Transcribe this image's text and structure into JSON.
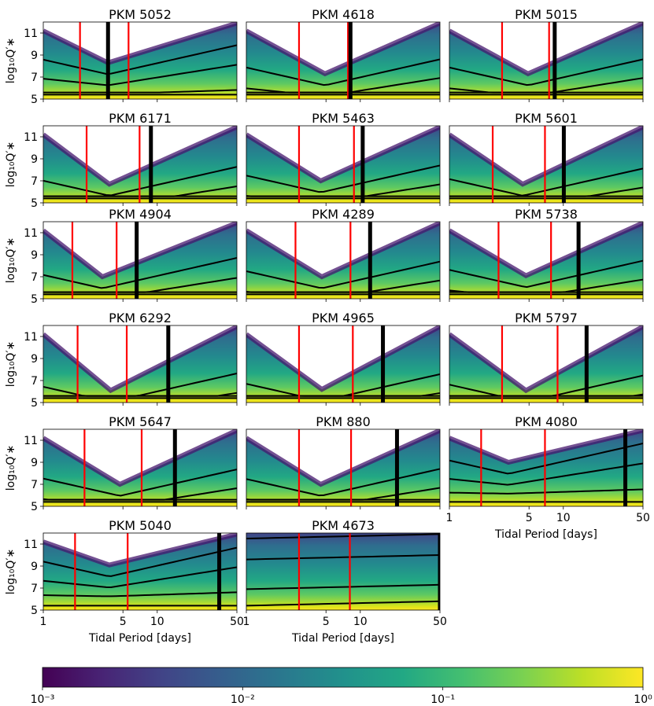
{
  "chart_data": {
    "type": "heatmap",
    "title": "",
    "xlabel": "Tidal Period [days]",
    "ylabel": "log₁₀Q′∗",
    "xscale": "log",
    "xlim": [
      1,
      50
    ],
    "ylim": [
      5,
      12
    ],
    "x_ticks": [
      1,
      5,
      10,
      50
    ],
    "x_tick_labels": [
      "1",
      "5",
      "10",
      "50"
    ],
    "y_ticks": [
      5,
      7,
      9,
      11
    ],
    "y_tick_labels": [
      "5",
      "7",
      "9",
      "11"
    ],
    "colorbar": {
      "scale": "log",
      "range": [
        0.001,
        1
      ],
      "colormap": "viridis",
      "ticks": [
        0.001,
        0.01,
        0.1,
        1
      ],
      "tick_labels": [
        "10⁻³",
        "10⁻²",
        "10⁻¹",
        "10⁰"
      ]
    },
    "panels": [
      {
        "name": "PKM 5052",
        "red_lines": [
          2.1,
          5.6
        ],
        "black_line": 3.7,
        "vertex": {
          "x": 3.7,
          "y": 8.3
        }
      },
      {
        "name": "PKM 4618",
        "red_lines": [
          2.9,
          7.8
        ],
        "black_line": 8.2,
        "vertex": {
          "x": 4.9,
          "y": 7.3
        }
      },
      {
        "name": "PKM 5015",
        "red_lines": [
          2.9,
          7.5
        ],
        "black_line": 8.4,
        "vertex": {
          "x": 4.9,
          "y": 7.3
        }
      },
      {
        "name": "PKM 6171",
        "red_lines": [
          2.4,
          7.0
        ],
        "black_line": 8.8,
        "vertex": {
          "x": 3.8,
          "y": 6.7
        }
      },
      {
        "name": "PKM 5463",
        "red_lines": [
          2.9,
          8.8
        ],
        "black_line": 10.5,
        "vertex": {
          "x": 4.5,
          "y": 7.0
        }
      },
      {
        "name": "PKM 5601",
        "red_lines": [
          2.4,
          6.9
        ],
        "black_line": 10.1,
        "vertex": {
          "x": 4.4,
          "y": 6.7
        }
      },
      {
        "name": "PKM 4904",
        "red_lines": [
          1.8,
          4.4
        ],
        "black_line": 6.6,
        "vertex": {
          "x": 3.3,
          "y": 7.0
        }
      },
      {
        "name": "PKM 4289",
        "red_lines": [
          2.7,
          8.2
        ],
        "black_line": 12.2,
        "vertex": {
          "x": 4.6,
          "y": 7.0
        }
      },
      {
        "name": "PKM 5738",
        "red_lines": [
          2.7,
          7.8
        ],
        "black_line": 13.6,
        "vertex": {
          "x": 4.7,
          "y": 7.1
        }
      },
      {
        "name": "PKM 6292",
        "red_lines": [
          2.0,
          5.4
        ],
        "black_line": 12.5,
        "vertex": {
          "x": 3.9,
          "y": 6.1
        }
      },
      {
        "name": "PKM 4965",
        "red_lines": [
          2.9,
          8.6
        ],
        "black_line": 15.8,
        "vertex": {
          "x": 4.6,
          "y": 6.2
        }
      },
      {
        "name": "PKM 5797",
        "red_lines": [
          2.9,
          8.9
        ],
        "black_line": 16.0,
        "vertex": {
          "x": 4.7,
          "y": 6.1
        }
      },
      {
        "name": "PKM 5647",
        "red_lines": [
          2.3,
          7.3
        ],
        "black_line": 14.3,
        "vertex": {
          "x": 4.7,
          "y": 7.0
        }
      },
      {
        "name": "PKM 880",
        "red_lines": [
          2.9,
          8.3
        ],
        "black_line": 21.0,
        "vertex": {
          "x": 4.5,
          "y": 7.0
        }
      },
      {
        "name": "PKM 4080",
        "red_lines": [
          1.9,
          6.9
        ],
        "black_line": 35.0,
        "vertex": {
          "x": 3.3,
          "y": 9.0
        }
      },
      {
        "name": "PKM 5040",
        "red_lines": [
          1.9,
          5.5
        ],
        "black_line": 35.0,
        "vertex": {
          "x": 3.8,
          "y": 9.1
        }
      },
      {
        "name": "PKM 4673",
        "red_lines": [
          2.9,
          8.1
        ],
        "black_line": 50.0,
        "vertex": null
      }
    ]
  }
}
